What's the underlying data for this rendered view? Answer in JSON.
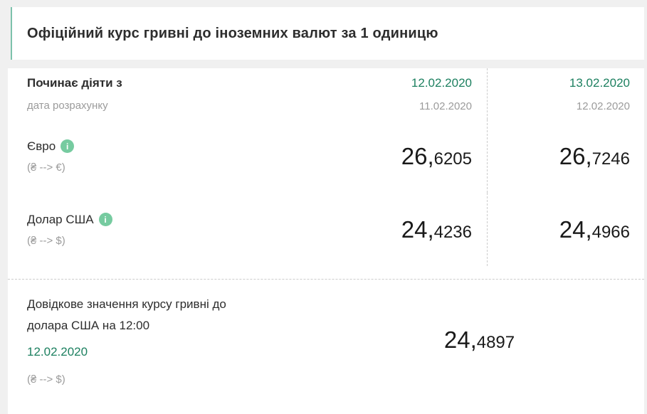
{
  "colors": {
    "accent_green": "#1d8060",
    "info_icon_green": "#76cba0",
    "header_border_teal": "#7cc2ab"
  },
  "icons": {
    "info_glyph": "i"
  },
  "header": {
    "title": "Офіційний курс гривні до іноземних валют за 1 одиницю"
  },
  "rates": {
    "effective_label": "Починає діяти з",
    "calc_label": "дата розрахунку",
    "columns": [
      {
        "effective": "12.02.2020",
        "calc": "11.02.2020"
      },
      {
        "effective": "13.02.2020",
        "calc": "12.02.2020"
      }
    ],
    "currencies": [
      {
        "name": "Євро",
        "pair": "(₴ --> €)",
        "values": [
          {
            "main": "26,",
            "frac": "6205"
          },
          {
            "main": "26,",
            "frac": "7246"
          }
        ]
      },
      {
        "name": "Долар США",
        "pair": "(₴ --> $)",
        "values": [
          {
            "main": "24,",
            "frac": "4236"
          },
          {
            "main": "24,",
            "frac": "4966"
          }
        ]
      }
    ]
  },
  "reference": {
    "line1": "Довідкове значення курсу гривні до",
    "line2": "долара США на 12:00",
    "date": "12.02.2020",
    "pair": "(₴ --> $)",
    "value": {
      "main": "24,",
      "frac": "4897"
    }
  }
}
